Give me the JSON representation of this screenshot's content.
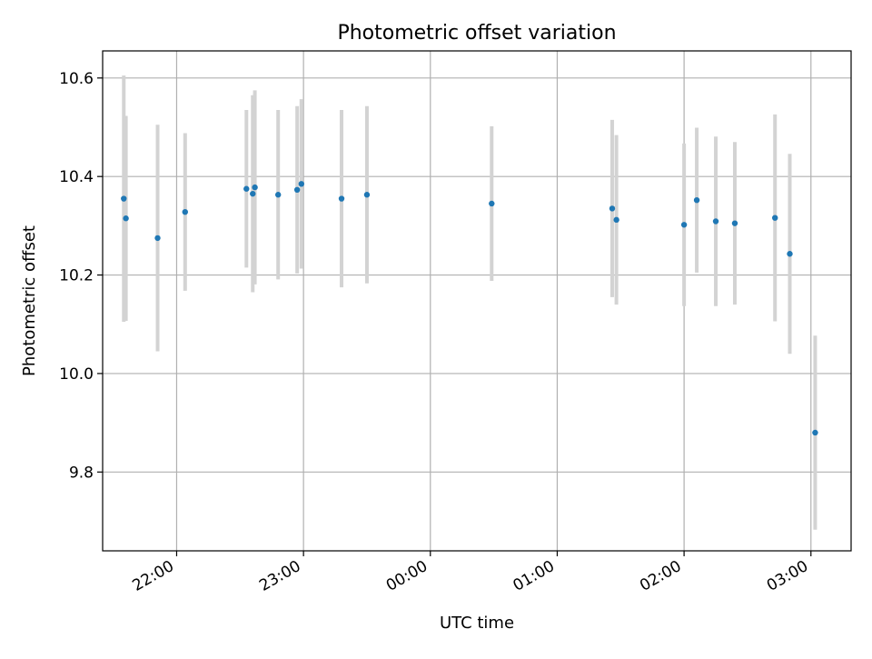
{
  "chart_data": {
    "type": "scatter",
    "title": "Photometric offset variation",
    "xlabel": "UTC time",
    "ylabel": "Photometric offset",
    "x_unit": "UTC time (HH:MM), points after midnight are on the following day",
    "x_ticks": [
      "22:00",
      "23:00",
      "00:00",
      "01:00",
      "02:00",
      "03:00"
    ],
    "xlim": [
      "21:25",
      "03:19"
    ],
    "y_ticks": [
      "9.8",
      "10.0",
      "10.2",
      "10.4",
      "10.6"
    ],
    "ylim": [
      9.64,
      10.655
    ],
    "grid": true,
    "colors": {
      "point": "#1f77b4",
      "errorbar": "#d3d3d3",
      "grid": "#b0b0b0"
    },
    "series": [
      {
        "points": [
          {
            "x": "21:35",
            "y": 10.355,
            "err": 0.25
          },
          {
            "x": "21:36",
            "y": 10.315,
            "err": 0.208
          },
          {
            "x": "21:51",
            "y": 10.275,
            "err": 0.23
          },
          {
            "x": "22:04",
            "y": 10.328,
            "err": 0.16
          },
          {
            "x": "22:33",
            "y": 10.375,
            "err": 0.16
          },
          {
            "x": "22:36",
            "y": 10.365,
            "err": 0.2
          },
          {
            "x": "22:37",
            "y": 10.378,
            "err": 0.197
          },
          {
            "x": "22:48",
            "y": 10.363,
            "err": 0.172
          },
          {
            "x": "22:57",
            "y": 10.373,
            "err": 0.17
          },
          {
            "x": "22:59",
            "y": 10.385,
            "err": 0.172
          },
          {
            "x": "23:18",
            "y": 10.355,
            "err": 0.18
          },
          {
            "x": "23:30",
            "y": 10.363,
            "err": 0.18
          },
          {
            "x": "00:29",
            "y": 10.345,
            "err": 0.157
          },
          {
            "x": "01:26",
            "y": 10.335,
            "err": 0.18
          },
          {
            "x": "01:28",
            "y": 10.312,
            "err": 0.172
          },
          {
            "x": "02:00",
            "y": 10.302,
            "err": 0.165
          },
          {
            "x": "02:06",
            "y": 10.352,
            "err": 0.147
          },
          {
            "x": "02:15",
            "y": 10.309,
            "err": 0.172
          },
          {
            "x": "02:24",
            "y": 10.305,
            "err": 0.165
          },
          {
            "x": "02:43",
            "y": 10.316,
            "err": 0.21
          },
          {
            "x": "02:50",
            "y": 10.243,
            "err": 0.203
          },
          {
            "x": "03:02",
            "y": 9.88,
            "err": 0.197
          }
        ]
      }
    ]
  }
}
